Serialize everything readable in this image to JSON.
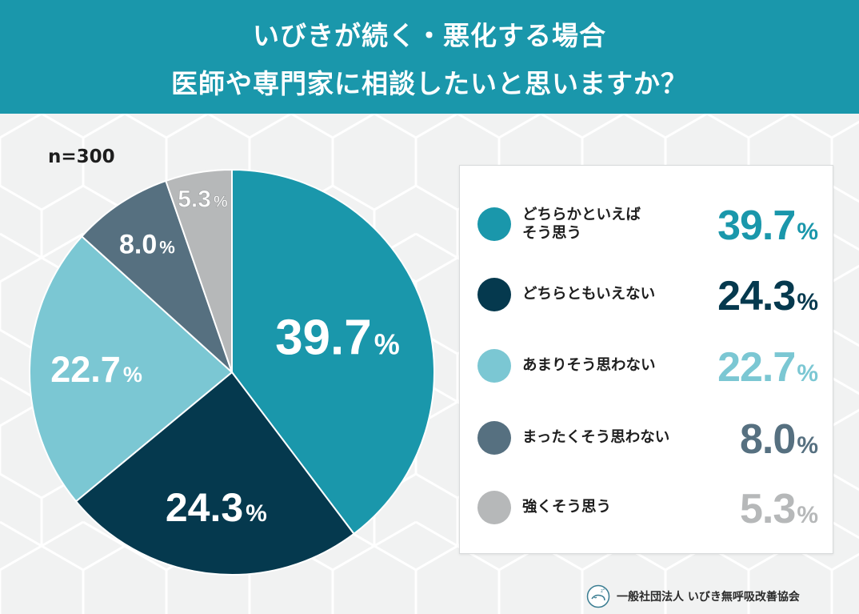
{
  "header": {
    "line1": "いびきが続く・悪化する場合",
    "line2": "医師や専門家に相談したいと思いますか？"
  },
  "sample_label": "n=300",
  "chart_data": {
    "type": "pie",
    "title": "いびきが続く・悪化する場合 医師や専門家に相談したいと思いますか？",
    "sample_size": "n=300",
    "unit": "%",
    "legend_placement": "right",
    "slices": [
      {
        "label": "どちらかといえばそう思う",
        "label_lines": [
          "どちらかといえば",
          "そう思う"
        ],
        "value": 39.7,
        "value_text": "39.7",
        "color": "#1a97ab",
        "inner_label_color": "#ffffff"
      },
      {
        "label": "どちらともいえない",
        "label_lines": [
          "どちらともいえない"
        ],
        "value": 24.3,
        "value_text": "24.3",
        "color": "#05394e",
        "inner_label_color": "#ffffff"
      },
      {
        "label": "あまりそう思わない",
        "label_lines": [
          "あまりそう思わない"
        ],
        "value": 22.7,
        "value_text": "22.7",
        "color": "#7bc7d3",
        "inner_label_color": "#ffffff"
      },
      {
        "label": "まったくそう思わない",
        "label_lines": [
          "まったくそう思わない"
        ],
        "value": 8.0,
        "value_text": "8.0",
        "color": "#567080",
        "inner_label_color": "#ffffff"
      },
      {
        "label": "強くそう思う",
        "label_lines": [
          "強くそう思う"
        ],
        "value": 5.3,
        "value_text": "5.3",
        "color": "#b6b8b9",
        "inner_label_color": "#ffffff"
      }
    ]
  },
  "footer": {
    "organization": "一般社団法人 いびき無呼吸改善協会",
    "logo_icon": "sleeping-face-logo-icon"
  },
  "colors": {
    "header_bg": "#1a97ab",
    "page_bg": "#f1f2f2",
    "legend_bg": "#ffffff"
  }
}
